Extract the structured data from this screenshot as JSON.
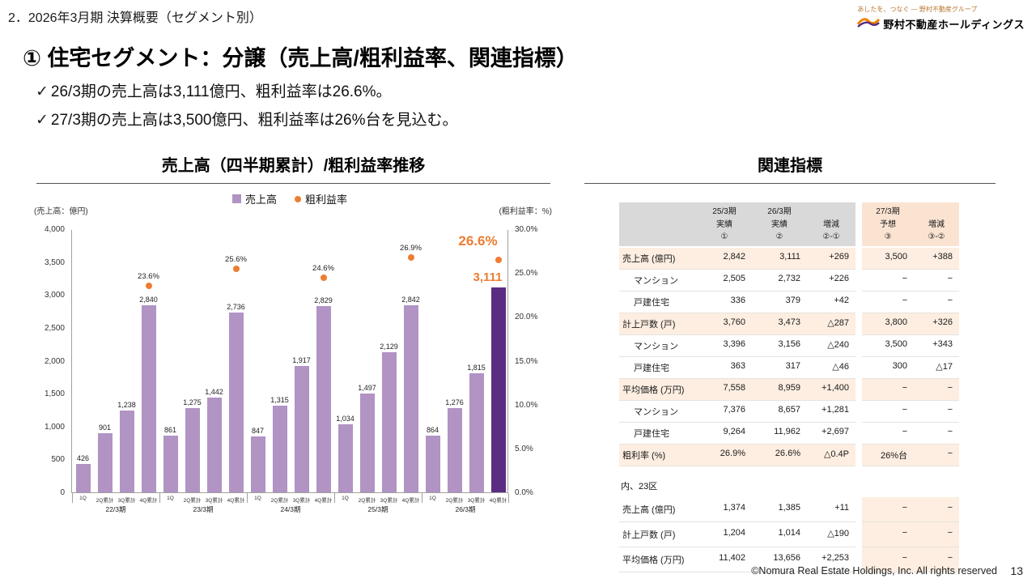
{
  "header": {
    "breadcrumb": "2．2026年3月期 決算概要（セグメント別）"
  },
  "logo": {
    "tagline": "あしたを、つなぐ ― 野村不動産グループ",
    "company": "野村不動産ホールディングス",
    "orange": "#f08300",
    "purple": "#5a2d82"
  },
  "title": "① 住宅セグメント：分譲（売上高/粗利益率、関連指標）",
  "icons": {
    "check": "✓"
  },
  "bullets": [
    "26/3期の売上高は3,111億円、粗利益率は26.6%。",
    "27/3期の売上高は3,500億円、粗利益率は26%台を見込む。"
  ],
  "chart_section_title": "売上高（四半期累計）/粗利益率推移",
  "table_section_title": "関連指標",
  "chart_data": {
    "type": "bar",
    "title": "売上高（四半期累計）/粗利益率推移",
    "left_axis_label": "(売上高：億円)",
    "right_axis_label": "(粗利益率：%)",
    "left_max": 4000,
    "right_max": 30,
    "left_ticks": [
      "4,000",
      "3,500",
      "3,000",
      "2,500",
      "2,000",
      "1,500",
      "1,000",
      "500",
      "0"
    ],
    "right_ticks": [
      "30.0%",
      "25.0%",
      "20.0%",
      "15.0%",
      "10.0%",
      "5.0%",
      "0.0%"
    ],
    "legend": [
      {
        "label": "売上高",
        "type": "bar",
        "color": "#b193c4"
      },
      {
        "label": "粗利益率",
        "type": "dot",
        "color": "#ed7d31"
      }
    ],
    "bar_color": "#b193c4",
    "bar_highlight_color": "#5a2d82",
    "dot_color": "#ed7d31",
    "quarter_labels": [
      "1Q",
      "2Q累計",
      "3Q累計",
      "4Q累計"
    ],
    "groups": [
      {
        "year": "22/3期",
        "values": [
          426,
          901,
          1238,
          2840
        ],
        "labels": [
          "426",
          "901",
          "1,238",
          "2,840"
        ],
        "rate": 23.6,
        "rate_label": "23.6%",
        "highlight": false
      },
      {
        "year": "23/3期",
        "values": [
          861,
          1275,
          1442,
          2736
        ],
        "labels": [
          "861",
          "1,275",
          "1,442",
          "2,736"
        ],
        "rate": 25.6,
        "rate_label": "25.6%",
        "highlight": false
      },
      {
        "year": "24/3期",
        "values": [
          847,
          1315,
          1917,
          2829
        ],
        "labels": [
          "847",
          "1,315",
          "1,917",
          "2,829"
        ],
        "rate": 24.6,
        "rate_label": "24.6%",
        "highlight": false
      },
      {
        "year": "25/3期",
        "values": [
          1034,
          1497,
          2129,
          2842
        ],
        "labels": [
          "1,034",
          "1,497",
          "2,129",
          "2,842"
        ],
        "rate": 26.9,
        "rate_label": "26.9%",
        "highlight": false
      },
      {
        "year": "26/3期",
        "values": [
          864,
          1276,
          1815,
          3111
        ],
        "labels": [
          "864",
          "1,276",
          "1,815",
          "3,111"
        ],
        "rate": 26.6,
        "rate_label": "26.6%",
        "highlight": true
      }
    ]
  },
  "table": {
    "columns": [
      {
        "lines": [
          "25/3期",
          "実績",
          "①"
        ],
        "block": "grey"
      },
      {
        "lines": [
          "26/3期",
          "実績",
          "②"
        ],
        "block": "grey"
      },
      {
        "lines": [
          "増減",
          "②-①"
        ],
        "block": "grey"
      },
      {
        "lines": [
          "27/3期",
          "予想",
          "③"
        ],
        "block": "peach"
      },
      {
        "lines": [
          "増減",
          "③-②"
        ],
        "block": "peach"
      }
    ],
    "rows": [
      {
        "label": "売上高 (億円)",
        "indent": false,
        "highlight": true,
        "values": [
          "2,842",
          "3,111",
          "+269",
          "3,500",
          "+388"
        ]
      },
      {
        "label": "マンション",
        "indent": true,
        "highlight": false,
        "values": [
          "2,505",
          "2,732",
          "+226",
          "−",
          "−"
        ]
      },
      {
        "label": "戸建住宅",
        "indent": true,
        "highlight": false,
        "values": [
          "336",
          "379",
          "+42",
          "−",
          "−"
        ]
      },
      {
        "label": "計上戸数 (戸)",
        "indent": false,
        "highlight": true,
        "values": [
          "3,760",
          "3,473",
          "△287",
          "3,800",
          "+326"
        ]
      },
      {
        "label": "マンション",
        "indent": true,
        "highlight": false,
        "values": [
          "3,396",
          "3,156",
          "△240",
          "3,500",
          "+343"
        ]
      },
      {
        "label": "戸建住宅",
        "indent": true,
        "highlight": false,
        "values": [
          "363",
          "317",
          "△46",
          "300",
          "△17"
        ]
      },
      {
        "label": "平均価格 (万円)",
        "indent": false,
        "highlight": true,
        "values": [
          "7,558",
          "8,959",
          "+1,400",
          "−",
          "−"
        ]
      },
      {
        "label": "マンション",
        "indent": true,
        "highlight": false,
        "values": [
          "7,376",
          "8,657",
          "+1,281",
          "−",
          "−"
        ]
      },
      {
        "label": "戸建住宅",
        "indent": true,
        "highlight": false,
        "values": [
          "9,264",
          "11,962",
          "+2,697",
          "−",
          "−"
        ]
      },
      {
        "label": "粗利率 (%)",
        "indent": false,
        "highlight": true,
        "values": [
          "26.9%",
          "26.6%",
          "△0.4P",
          "26%台",
          "−"
        ]
      }
    ],
    "section2_label": "内、23区",
    "rows2": [
      {
        "label": "売上高 (億円)",
        "values": [
          "1,374",
          "1,385",
          "+11",
          "−",
          "−"
        ]
      },
      {
        "label": "計上戸数 (戸)",
        "values": [
          "1,204",
          "1,014",
          "△190",
          "−",
          "−"
        ]
      },
      {
        "label": "平均価格 (万円)",
        "values": [
          "11,402",
          "13,656",
          "+2,253",
          "−",
          "−"
        ]
      }
    ]
  },
  "footer": {
    "copyright": "©Nomura Real Estate Holdings, Inc. All rights reserved",
    "page": "13"
  }
}
